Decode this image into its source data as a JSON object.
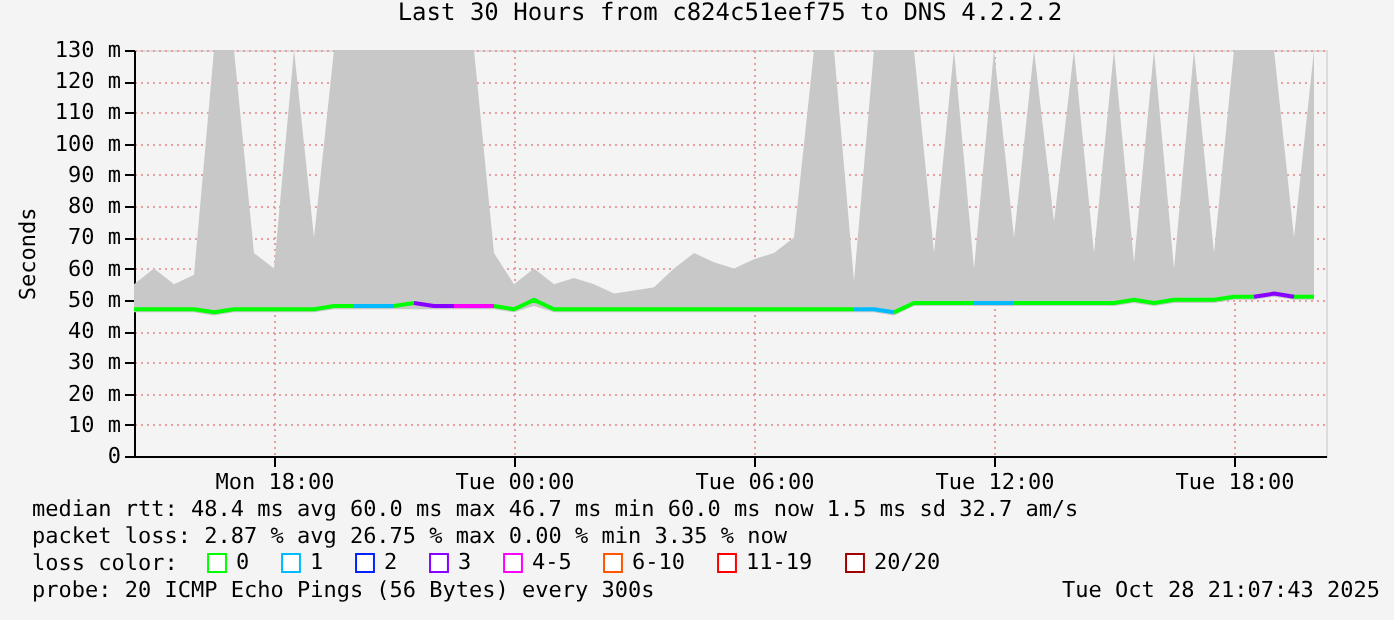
{
  "chart_data": {
    "type": "line",
    "title": "Last 30 Hours from c824c51eef75 to DNS 4.2.2.2",
    "ylabel": "Seconds",
    "legend_title": "loss color:",
    "legend": "bottom left",
    "grid": true,
    "marker": "none",
    "line_style": "solid",
    "xlim": [
      "2025-10-27T14:30",
      "2025-10-28T20:18"
    ],
    "xticks": [
      {
        "value": "2025-10-27T18:00",
        "label": "Mon 18:00"
      },
      {
        "value": "2025-10-28T00:00",
        "label": "Tue 00:00"
      },
      {
        "value": "2025-10-28T06:00",
        "label": "Tue 06:00"
      },
      {
        "value": "2025-10-28T12:00",
        "label": "Tue 12:00"
      },
      {
        "value": "2025-10-28T18:00",
        "label": "Tue 18:00"
      }
    ],
    "ylim": [
      0,
      130
    ],
    "yticks": [
      0,
      {
        "value": 10,
        "label": "10 m"
      },
      {
        "value": 20,
        "label": "20 m"
      },
      {
        "value": 30,
        "label": "30 m"
      },
      {
        "value": 40,
        "label": "40 m"
      },
      {
        "value": 50,
        "label": "50 m"
      },
      {
        "value": 60,
        "label": "60 m"
      },
      {
        "value": 70,
        "label": "70 m"
      },
      {
        "value": 80,
        "label": "80 m"
      },
      {
        "value": 90,
        "label": "90 m"
      },
      {
        "value": 100,
        "label": "100 m"
      },
      {
        "value": 110,
        "label": "110 m"
      },
      {
        "value": 120,
        "label": "120 m"
      },
      {
        "value": 130,
        "label": "130 m"
      }
    ],
    "x": [
      "2025-10-27T14:30",
      "2025-10-27T15:00",
      "2025-10-27T15:30",
      "2025-10-27T16:00",
      "2025-10-27T16:30",
      "2025-10-27T17:00",
      "2025-10-27T17:30",
      "2025-10-27T18:00",
      "2025-10-27T18:30",
      "2025-10-27T19:00",
      "2025-10-27T19:30",
      "2025-10-27T20:00",
      "2025-10-27T20:30",
      "2025-10-27T21:00",
      "2025-10-27T21:30",
      "2025-10-27T22:00",
      "2025-10-27T22:30",
      "2025-10-27T23:00",
      "2025-10-27T23:30",
      "2025-10-28T00:00",
      "2025-10-28T00:30",
      "2025-10-28T01:00",
      "2025-10-28T01:30",
      "2025-10-28T02:00",
      "2025-10-28T02:30",
      "2025-10-28T03:00",
      "2025-10-28T03:30",
      "2025-10-28T04:00",
      "2025-10-28T04:30",
      "2025-10-28T05:00",
      "2025-10-28T05:30",
      "2025-10-28T06:00",
      "2025-10-28T06:30",
      "2025-10-28T07:00",
      "2025-10-28T07:30",
      "2025-10-28T08:00",
      "2025-10-28T08:30",
      "2025-10-28T09:00",
      "2025-10-28T09:30",
      "2025-10-28T10:00",
      "2025-10-28T10:30",
      "2025-10-28T11:00",
      "2025-10-28T11:30",
      "2025-10-28T12:00",
      "2025-10-28T12:30",
      "2025-10-28T13:00",
      "2025-10-28T13:30",
      "2025-10-28T14:00",
      "2025-10-28T14:30",
      "2025-10-28T15:00",
      "2025-10-28T15:30",
      "2025-10-28T16:00",
      "2025-10-28T16:30",
      "2025-10-28T17:00",
      "2025-10-28T17:30",
      "2025-10-28T18:00",
      "2025-10-28T18:30",
      "2025-10-28T19:00",
      "2025-10-28T19:30",
      "2025-10-28T20:00"
    ],
    "series": [
      {
        "name": "0",
        "color": "#00ff00",
        "values": [
          47,
          47,
          47,
          47,
          46,
          47,
          47,
          47,
          47,
          47,
          48,
          48,
          null,
          48,
          49,
          null,
          null,
          null,
          48,
          47,
          50,
          47,
          47,
          47,
          47,
          47,
          47,
          47,
          47,
          47,
          47,
          47,
          47,
          47,
          47,
          47,
          47,
          null,
          46,
          49,
          49,
          49,
          49,
          null,
          49,
          49,
          49,
          49,
          49,
          49,
          50,
          49,
          50,
          50,
          50,
          51,
          51,
          null,
          51,
          51
        ],
        "lower": [
          46,
          46,
          46,
          46,
          45,
          46,
          46,
          46,
          46,
          46,
          47,
          47,
          47,
          47,
          47,
          47,
          47,
          47,
          47,
          46,
          48,
          46,
          46,
          46,
          46,
          46,
          46,
          46,
          46,
          46,
          46,
          46,
          46,
          46,
          46,
          46,
          46,
          46,
          45,
          48,
          48,
          48,
          48,
          48,
          48,
          48,
          48,
          48,
          48,
          48,
          49,
          48,
          49,
          49,
          49,
          50,
          50,
          51,
          50,
          50
        ],
        "upper": [
          55,
          60,
          55,
          58,
          130,
          130,
          65,
          60,
          130,
          70,
          130,
          130,
          130,
          130,
          130,
          130,
          130,
          130,
          65,
          55,
          60,
          55,
          57,
          55,
          52,
          53,
          54,
          60,
          65,
          62,
          60,
          63,
          65,
          70,
          130,
          130,
          56,
          130,
          130,
          130,
          65,
          130,
          60,
          130,
          70,
          130,
          75,
          130,
          65,
          130,
          62,
          130,
          60,
          130,
          65,
          130,
          130,
          130,
          70,
          130
        ]
      },
      {
        "name": "1",
        "color": "#00bbff",
        "x": [
          "2025-10-27T20:00",
          "2025-10-27T20:30",
          "2025-10-27T21:00",
          "2025-10-27T22:00",
          "2025-10-28T08:30",
          "2025-10-28T09:00",
          "2025-10-28T09:30",
          "2025-10-28T10:00",
          "2025-10-28T11:30",
          "2025-10-28T12:00",
          "2025-10-28T12:30"
        ],
        "values": [
          48,
          48,
          48,
          null,
          47,
          47,
          46,
          null,
          49,
          49,
          49
        ]
      },
      {
        "name": "2",
        "color": "#0022ff",
        "values": [
          null,
          null,
          null,
          null,
          null,
          null,
          null,
          null,
          null,
          null,
          null,
          null,
          null,
          null,
          null,
          null,
          null,
          null,
          null,
          null,
          null,
          null,
          null,
          null,
          null,
          null,
          null,
          null,
          null,
          null,
          null,
          null,
          null,
          null,
          null,
          null,
          null,
          null,
          null,
          null,
          null,
          null,
          null,
          null,
          null,
          null,
          null,
          null,
          null,
          null,
          null,
          null,
          null,
          null,
          null,
          null,
          null,
          null,
          null,
          null
        ]
      },
      {
        "name": "3",
        "color": "#8800ff",
        "x": [
          "2025-10-27T21:30",
          "2025-10-27T22:00",
          "2025-10-27T22:30",
          "2025-10-28T06:00",
          "2025-10-28T18:30",
          "2025-10-28T19:00",
          "2025-10-28T19:30"
        ],
        "values": [
          49,
          48,
          48,
          null,
          51,
          52,
          51
        ]
      },
      {
        "name": "4-5",
        "color": "#ff00ff",
        "x": [
          "2025-10-27T22:30",
          "2025-10-27T23:00",
          "2025-10-27T23:30"
        ],
        "values": [
          48,
          48,
          48
        ]
      },
      {
        "name": "6-10",
        "color": "#ff5500",
        "values": [
          null,
          null,
          null,
          null,
          null,
          null,
          null,
          null,
          null,
          null,
          null,
          null,
          null,
          null,
          null,
          null,
          null,
          null,
          null,
          null,
          null,
          null,
          null,
          null,
          null,
          null,
          null,
          null,
          null,
          null,
          null,
          null,
          null,
          null,
          null,
          null,
          null,
          null,
          null,
          null,
          null,
          null,
          null,
          null,
          null,
          null,
          null,
          null,
          null,
          null,
          null,
          null,
          null,
          null,
          null,
          null,
          null,
          null,
          null,
          null
        ]
      },
      {
        "name": "11-19",
        "color": "#ff0000",
        "values": [
          null,
          null,
          null,
          null,
          null,
          null,
          null,
          null,
          null,
          null,
          null,
          null,
          null,
          null,
          null,
          null,
          null,
          null,
          null,
          null,
          null,
          null,
          null,
          null,
          null,
          null,
          null,
          null,
          null,
          null,
          null,
          null,
          null,
          null,
          null,
          null,
          null,
          null,
          null,
          null,
          null,
          null,
          null,
          null,
          null,
          null,
          null,
          null,
          null,
          null,
          null,
          null,
          null,
          null,
          null,
          null,
          null,
          null,
          null,
          null
        ]
      },
      {
        "name": "20/20",
        "color": "#a10000",
        "values": [
          null,
          null,
          null,
          null,
          null,
          null,
          null,
          null,
          null,
          null,
          null,
          null,
          null,
          null,
          null,
          null,
          null,
          null,
          null,
          null,
          null,
          null,
          null,
          null,
          null,
          null,
          null,
          null,
          null,
          null,
          null,
          null,
          null,
          null,
          null,
          null,
          null,
          null,
          null,
          null,
          null,
          null,
          null,
          null,
          null,
          null,
          null,
          null,
          null,
          null,
          null,
          null,
          null,
          null,
          null,
          null,
          null,
          null,
          null,
          null
        ]
      }
    ],
    "annotations": [
      "median rtt:  48.4 ms avg  60.0 ms max  46.7 ms min  60.0 ms now  1.5 ms sd  32.7   am/s",
      "packet loss: 2.87 % avg  26.75 % max  0.00 % min  3.35 % now",
      "probe:        20 ICMP Echo Pings (56 Bytes) every 300s",
      "Tue Oct 28 21:07:43 2025"
    ]
  }
}
